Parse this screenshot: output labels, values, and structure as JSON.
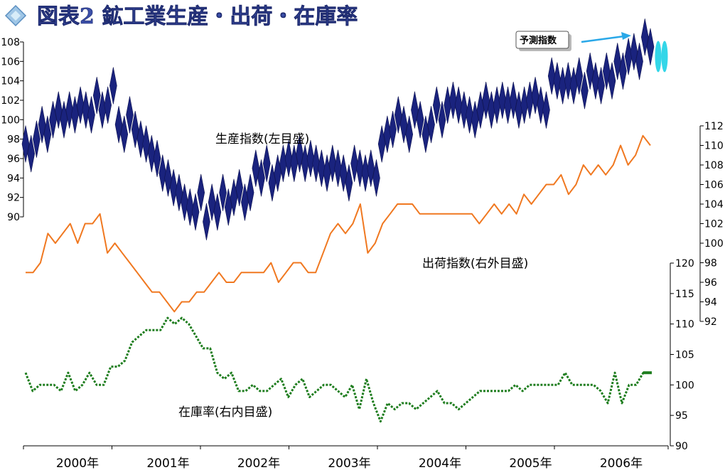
{
  "title": "図表2 鉱工業生産・出荷・在庫率",
  "callout_label": "予測指数",
  "colors": {
    "production": "#1a237e",
    "shipments": "#f07820",
    "inventory": "#1e7d1e",
    "forecast": "#33d6e8",
    "callout_arrow": "#2aa8e8",
    "title": "#3b4fa8"
  },
  "chart_data": {
    "type": "line",
    "x_unit": "month",
    "x_start": "2000-01",
    "x_end": "2006-12",
    "x_ticks": [
      "2000年",
      "2001年",
      "2002年",
      "2003年",
      "2004年",
      "2005年",
      "2006年"
    ],
    "axes": {
      "left": {
        "range": [
          90,
          108
        ],
        "ticks": [
          "90",
          "92",
          "94",
          "96",
          "98",
          "100",
          "102",
          "104",
          "106",
          "108"
        ]
      },
      "right_outer": {
        "range": [
          92,
          112
        ],
        "ticks": [
          "92",
          "94",
          "96",
          "98",
          "100",
          "102",
          "104",
          "106",
          "108",
          "110",
          "112"
        ]
      },
      "right_inner": {
        "range": [
          90,
          120
        ],
        "ticks": [
          "90",
          "95",
          "100",
          "105",
          "110",
          "115",
          "120"
        ]
      }
    },
    "series": [
      {
        "name": "生産指数(左目盛)",
        "axis": "left",
        "values": [
          97.5,
          96.5,
          98,
          99.5,
          98.5,
          100,
          101,
          100,
          101,
          100.5,
          101.5,
          101,
          100.5,
          102.5,
          101,
          101.5,
          103.5,
          99.5,
          98.5,
          100.5,
          99,
          98,
          97.5,
          96.5,
          96,
          94.5,
          94,
          93,
          92.5,
          91.5,
          91,
          90.5,
          92.5,
          89.5,
          91.5,
          90.5,
          92.5,
          91,
          92,
          93,
          91.5,
          92.5,
          95,
          94,
          95.5,
          93.5,
          94.5,
          95.5,
          96,
          95.5,
          96.5,
          95.5,
          96,
          95.5,
          95,
          94.5,
          95.5,
          95,
          94.5,
          93.5,
          95.5,
          95,
          94.5,
          95,
          94,
          97.5,
          98.5,
          99,
          100.5,
          99.5,
          98.5,
          101,
          100,
          98.5,
          99.5,
          101.5,
          100,
          101.5,
          102,
          101.5,
          101,
          100.5,
          100,
          101,
          102,
          101,
          101.5,
          102,
          101.5,
          102,
          101,
          101.5,
          102,
          102.5,
          101.5,
          101,
          104.5,
          104,
          103.5,
          104,
          103.5,
          104.5,
          103,
          105,
          104,
          103.5,
          105,
          104,
          106,
          105,
          106.5,
          107,
          106,
          108.5,
          107.5
        ],
        "forecast_values": [
          106.5,
          106.5
        ]
      },
      {
        "name": "出荷指数(右外目盛)",
        "axis": "right_outer",
        "values": [
          97,
          97,
          98,
          101,
          100,
          101,
          102,
          100,
          102,
          102,
          103,
          99,
          100,
          99,
          98,
          97,
          96,
          95,
          95,
          94,
          93,
          94,
          94,
          95,
          95,
          96,
          97,
          96,
          96,
          97,
          97,
          97,
          97,
          98,
          96,
          97,
          98,
          98,
          97,
          97,
          99,
          101,
          102,
          101,
          102,
          104,
          99,
          100,
          102,
          103,
          104,
          104,
          104,
          103,
          103,
          103,
          103,
          103,
          103,
          103,
          103,
          102,
          103,
          104,
          103,
          104,
          103,
          105,
          104,
          105,
          106,
          106,
          107,
          105,
          106,
          108,
          107,
          108,
          107,
          108,
          110,
          108,
          109,
          111,
          110
        ],
        "x_start_index": 0
      },
      {
        "name": "在庫率(右内目盛)",
        "axis": "right_inner",
        "values": [
          102,
          99,
          100,
          100,
          100,
          99,
          102,
          99,
          100,
          102,
          100,
          100,
          103,
          103,
          104,
          107,
          108,
          109,
          109,
          109,
          111,
          110,
          111,
          110,
          108,
          106,
          106,
          102,
          101,
          102,
          99,
          99,
          100,
          99,
          99,
          100,
          101,
          98,
          100,
          101,
          98,
          99,
          100,
          100,
          99,
          98,
          100,
          96,
          101,
          97,
          94,
          97,
          96,
          97,
          97,
          96,
          97,
          98,
          99,
          97,
          97,
          96,
          97,
          98,
          99,
          99,
          99,
          99,
          99,
          100,
          99,
          100,
          100,
          100,
          100,
          100,
          102,
          100,
          100,
          100,
          100,
          99,
          97,
          102,
          97,
          100,
          100,
          102,
          102
        ],
        "x_start_index": 0
      }
    ]
  }
}
